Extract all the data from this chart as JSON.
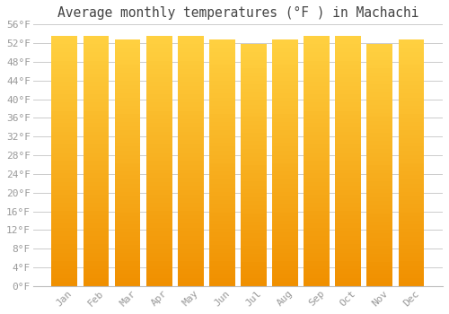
{
  "title": "Average monthly temperatures (°F ) in Machachi",
  "months": [
    "Jan",
    "Feb",
    "Mar",
    "Apr",
    "May",
    "Jun",
    "Jul",
    "Aug",
    "Sep",
    "Oct",
    "Nov",
    "Dec"
  ],
  "values": [
    53.6,
    53.6,
    52.7,
    53.6,
    53.6,
    52.7,
    51.8,
    52.7,
    53.6,
    53.6,
    51.8,
    52.7
  ],
  "ylim": [
    0,
    56
  ],
  "yticks": [
    0,
    4,
    8,
    12,
    16,
    20,
    24,
    28,
    32,
    36,
    40,
    44,
    48,
    52,
    56
  ],
  "bar_color_center": "#FFD040",
  "bar_color_edge": "#F09000",
  "background_color": "#FFFFFF",
  "grid_color": "#CCCCCC",
  "title_fontsize": 10.5,
  "tick_fontsize": 8,
  "tick_color": "#999999",
  "title_color": "#444444"
}
